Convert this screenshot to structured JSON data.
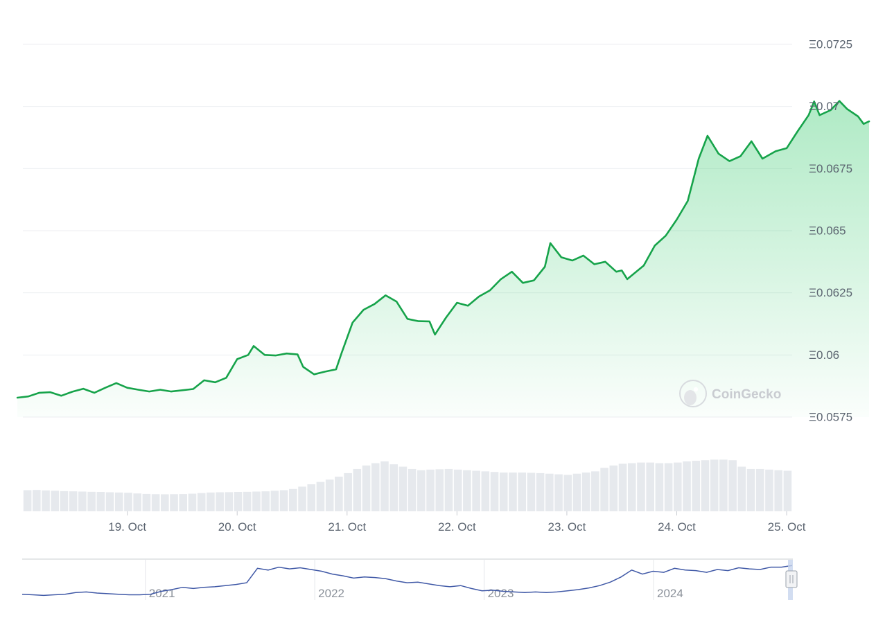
{
  "chart_data": {
    "type": "area",
    "currency_symbol": "Ξ",
    "y_ticks": [
      "Ξ0.0725",
      "Ξ0.07",
      "Ξ0.0675",
      "Ξ0.065",
      "Ξ0.0625",
      "Ξ0.06",
      "Ξ0.0575"
    ],
    "y_tick_values": [
      0.0725,
      0.07,
      0.0675,
      0.065,
      0.0625,
      0.06,
      0.0575
    ],
    "ylim": [
      0.0575,
      0.0725
    ],
    "x_ticks": [
      "19. Oct",
      "20. Oct",
      "21. Oct",
      "22. Oct",
      "23. Oct",
      "24. Oct",
      "25. Oct"
    ],
    "x_tick_days": [
      1,
      2,
      3,
      4,
      5,
      6,
      7
    ],
    "xlim_days": [
      0.05,
      7.05
    ],
    "grid": true,
    "price_series": {
      "color": "#16a34a",
      "points": [
        [
          0.0,
          0.05828
        ],
        [
          0.1,
          0.05833
        ],
        [
          0.2,
          0.05848
        ],
        [
          0.3,
          0.0585
        ],
        [
          0.4,
          0.05836
        ],
        [
          0.5,
          0.05852
        ],
        [
          0.6,
          0.05864
        ],
        [
          0.7,
          0.05848
        ],
        [
          0.8,
          0.05868
        ],
        [
          0.9,
          0.05887
        ],
        [
          1.0,
          0.05868
        ],
        [
          1.1,
          0.0586
        ],
        [
          1.2,
          0.05853
        ],
        [
          1.3,
          0.0586
        ],
        [
          1.4,
          0.05853
        ],
        [
          1.5,
          0.05858
        ],
        [
          1.6,
          0.05863
        ],
        [
          1.7,
          0.05898
        ],
        [
          1.8,
          0.0589
        ],
        [
          1.9,
          0.05908
        ],
        [
          2.0,
          0.05983
        ],
        [
          2.1,
          0.06
        ],
        [
          2.15,
          0.06036
        ],
        [
          2.25,
          0.06
        ],
        [
          2.35,
          0.05998
        ],
        [
          2.45,
          0.06006
        ],
        [
          2.55,
          0.06002
        ],
        [
          2.6,
          0.05952
        ],
        [
          2.7,
          0.05922
        ],
        [
          2.8,
          0.05933
        ],
        [
          2.9,
          0.05942
        ],
        [
          2.95,
          0.06008
        ],
        [
          3.05,
          0.0613
        ],
        [
          3.15,
          0.06182
        ],
        [
          3.25,
          0.06205
        ],
        [
          3.35,
          0.0624
        ],
        [
          3.45,
          0.06215
        ],
        [
          3.55,
          0.06145
        ],
        [
          3.65,
          0.06136
        ],
        [
          3.75,
          0.06135
        ],
        [
          3.8,
          0.06082
        ],
        [
          3.9,
          0.0615
        ],
        [
          4.0,
          0.0621
        ],
        [
          4.1,
          0.06198
        ],
        [
          4.2,
          0.06235
        ],
        [
          4.3,
          0.0626
        ],
        [
          4.4,
          0.06305
        ],
        [
          4.5,
          0.06335
        ],
        [
          4.6,
          0.0629
        ],
        [
          4.7,
          0.063
        ],
        [
          4.8,
          0.06355
        ],
        [
          4.85,
          0.0645
        ],
        [
          4.95,
          0.06393
        ],
        [
          5.05,
          0.0638
        ],
        [
          5.15,
          0.064
        ],
        [
          5.25,
          0.06365
        ],
        [
          5.35,
          0.06375
        ],
        [
          5.45,
          0.06335
        ],
        [
          5.5,
          0.0634
        ],
        [
          5.55,
          0.06305
        ],
        [
          5.7,
          0.0636
        ],
        [
          5.8,
          0.0644
        ],
        [
          5.9,
          0.0648
        ],
        [
          6.0,
          0.06545
        ],
        [
          6.1,
          0.0662
        ],
        [
          6.2,
          0.0679
        ],
        [
          6.28,
          0.06882
        ],
        [
          6.38,
          0.0681
        ],
        [
          6.48,
          0.0678
        ],
        [
          6.58,
          0.068
        ],
        [
          6.68,
          0.0686
        ],
        [
          6.78,
          0.0679
        ],
        [
          6.9,
          0.0682
        ],
        [
          7.0,
          0.06832
        ],
        [
          7.1,
          0.069
        ],
        [
          7.2,
          0.06965
        ],
        [
          7.25,
          0.0702
        ],
        [
          7.3,
          0.06965
        ],
        [
          7.4,
          0.06985
        ],
        [
          7.48,
          0.07022
        ],
        [
          7.55,
          0.0699
        ],
        [
          7.65,
          0.0696
        ],
        [
          7.7,
          0.0693
        ],
        [
          7.75,
          0.0694
        ]
      ]
    },
    "volume_series": {
      "color": "#e6e9ed",
      "values": [
        1.8,
        1.82,
        1.78,
        1.75,
        1.72,
        1.7,
        1.68,
        1.66,
        1.65,
        1.62,
        1.6,
        1.58,
        1.52,
        1.48,
        1.46,
        1.45,
        1.46,
        1.47,
        1.5,
        1.55,
        1.6,
        1.62,
        1.63,
        1.65,
        1.66,
        1.68,
        1.7,
        1.75,
        1.8,
        1.9,
        2.1,
        2.3,
        2.5,
        2.7,
        2.95,
        3.25,
        3.6,
        3.9,
        4.1,
        4.25,
        4.0,
        3.8,
        3.6,
        3.5,
        3.55,
        3.58,
        3.6,
        3.55,
        3.5,
        3.45,
        3.4,
        3.35,
        3.3,
        3.3,
        3.3,
        3.28,
        3.25,
        3.2,
        3.15,
        3.1,
        3.2,
        3.3,
        3.4,
        3.7,
        3.9,
        4.05,
        4.1,
        4.15,
        4.15,
        4.1,
        4.1,
        4.15,
        4.25,
        4.3,
        4.35,
        4.4,
        4.4,
        4.35,
        3.8,
        3.6,
        3.6,
        3.55,
        3.5,
        3.45
      ]
    },
    "navigator": {
      "labels": [
        "2021",
        "2022",
        "2023",
        "2024"
      ],
      "line_color": "#3f58a6",
      "values": [
        0.04,
        0.039,
        0.038,
        0.039,
        0.04,
        0.043,
        0.044,
        0.042,
        0.041,
        0.04,
        0.039,
        0.039,
        0.04,
        0.045,
        0.048,
        0.052,
        0.05,
        0.052,
        0.053,
        0.055,
        0.057,
        0.06,
        0.085,
        0.082,
        0.087,
        0.084,
        0.086,
        0.083,
        0.08,
        0.075,
        0.072,
        0.068,
        0.07,
        0.069,
        0.067,
        0.063,
        0.06,
        0.061,
        0.058,
        0.055,
        0.053,
        0.055,
        0.05,
        0.046,
        0.047,
        0.045,
        0.044,
        0.043,
        0.044,
        0.043,
        0.044,
        0.046,
        0.048,
        0.051,
        0.055,
        0.061,
        0.07,
        0.082,
        0.075,
        0.08,
        0.078,
        0.085,
        0.082,
        0.081,
        0.078,
        0.083,
        0.081,
        0.086,
        0.084,
        0.083,
        0.087,
        0.087,
        0.09
      ]
    }
  },
  "watermark": {
    "text": "CoinGecko"
  }
}
